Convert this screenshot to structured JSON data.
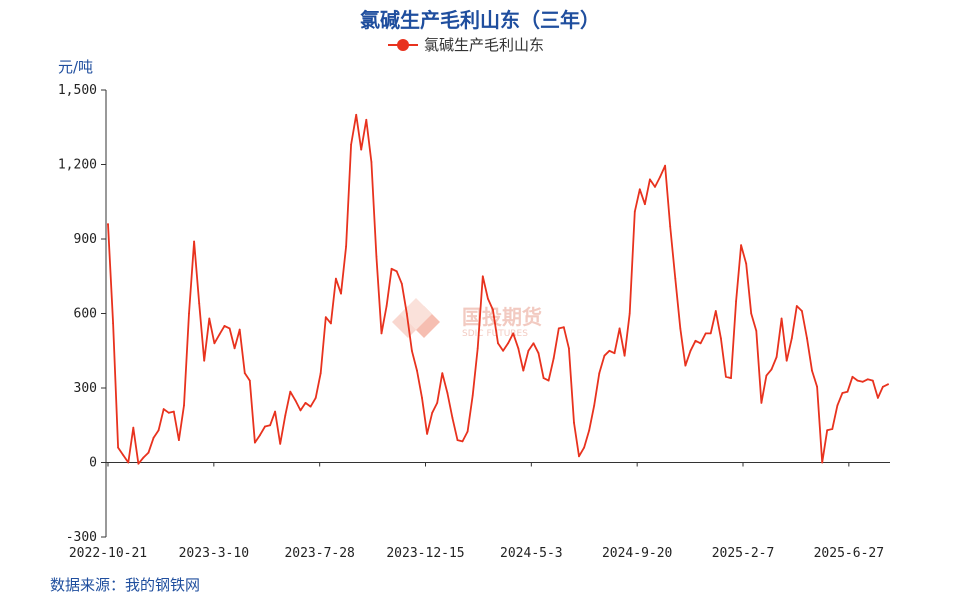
{
  "title": "氯碱生产毛利山东（三年）",
  "unit": "元/吨",
  "source": "数据来源：我的钢铁网",
  "watermark": {
    "main": "国投期货",
    "sub": "SDIC FUTURES"
  },
  "colors": {
    "title": "#1f4e9e",
    "series": "#e8321e",
    "axis": "#333333",
    "watermark": "#f0a090"
  },
  "chart_data": {
    "type": "line",
    "title": "氯碱生产毛利山东（三年）",
    "ylabel": "元/吨",
    "ylim": [
      -300,
      1500
    ],
    "grid": false,
    "legend_position": "top-center",
    "y_ticks": [
      -300,
      0,
      300,
      600,
      900,
      1200,
      1500
    ],
    "y_tick_labels": [
      "-300",
      "0",
      "300",
      "600",
      "900",
      "1,200",
      "1,500"
    ],
    "x_tick_labels": [
      "2022-10-21",
      "2023-3-10",
      "2023-7-28",
      "2023-12-15",
      "2024-5-3",
      "2024-9-20",
      "2025-2-7",
      "2025-6-27"
    ],
    "series": [
      {
        "name": "氯碱生产毛利山东",
        "values": [
          960,
          560,
          60,
          30,
          0,
          140,
          -5,
          20,
          40,
          100,
          130,
          215,
          200,
          205,
          90,
          230,
          600,
          890,
          640,
          410,
          580,
          480,
          515,
          550,
          540,
          460,
          535,
          360,
          330,
          80,
          110,
          145,
          150,
          205,
          75,
          190,
          285,
          250,
          210,
          240,
          225,
          260,
          360,
          585,
          560,
          740,
          680,
          870,
          1280,
          1400,
          1260,
          1380,
          1210,
          830,
          520,
          630,
          780,
          770,
          720,
          600,
          450,
          370,
          260,
          115,
          200,
          240,
          360,
          280,
          180,
          90,
          85,
          125,
          270,
          460,
          750,
          660,
          615,
          480,
          450,
          480,
          520,
          460,
          370,
          450,
          480,
          440,
          340,
          330,
          420,
          540,
          545,
          460,
          160,
          25,
          60,
          130,
          230,
          360,
          430,
          450,
          440,
          540,
          430,
          600,
          1010,
          1100,
          1040,
          1140,
          1110,
          1150,
          1195,
          950,
          740,
          540,
          390,
          450,
          490,
          480,
          520,
          520,
          610,
          500,
          345,
          340,
          650,
          875,
          800,
          600,
          530,
          240,
          350,
          375,
          425,
          580,
          410,
          500,
          630,
          610,
          500,
          370,
          305,
          0,
          130,
          135,
          230,
          280,
          285,
          345,
          330,
          325,
          335,
          330,
          260,
          305,
          315
        ]
      }
    ]
  }
}
